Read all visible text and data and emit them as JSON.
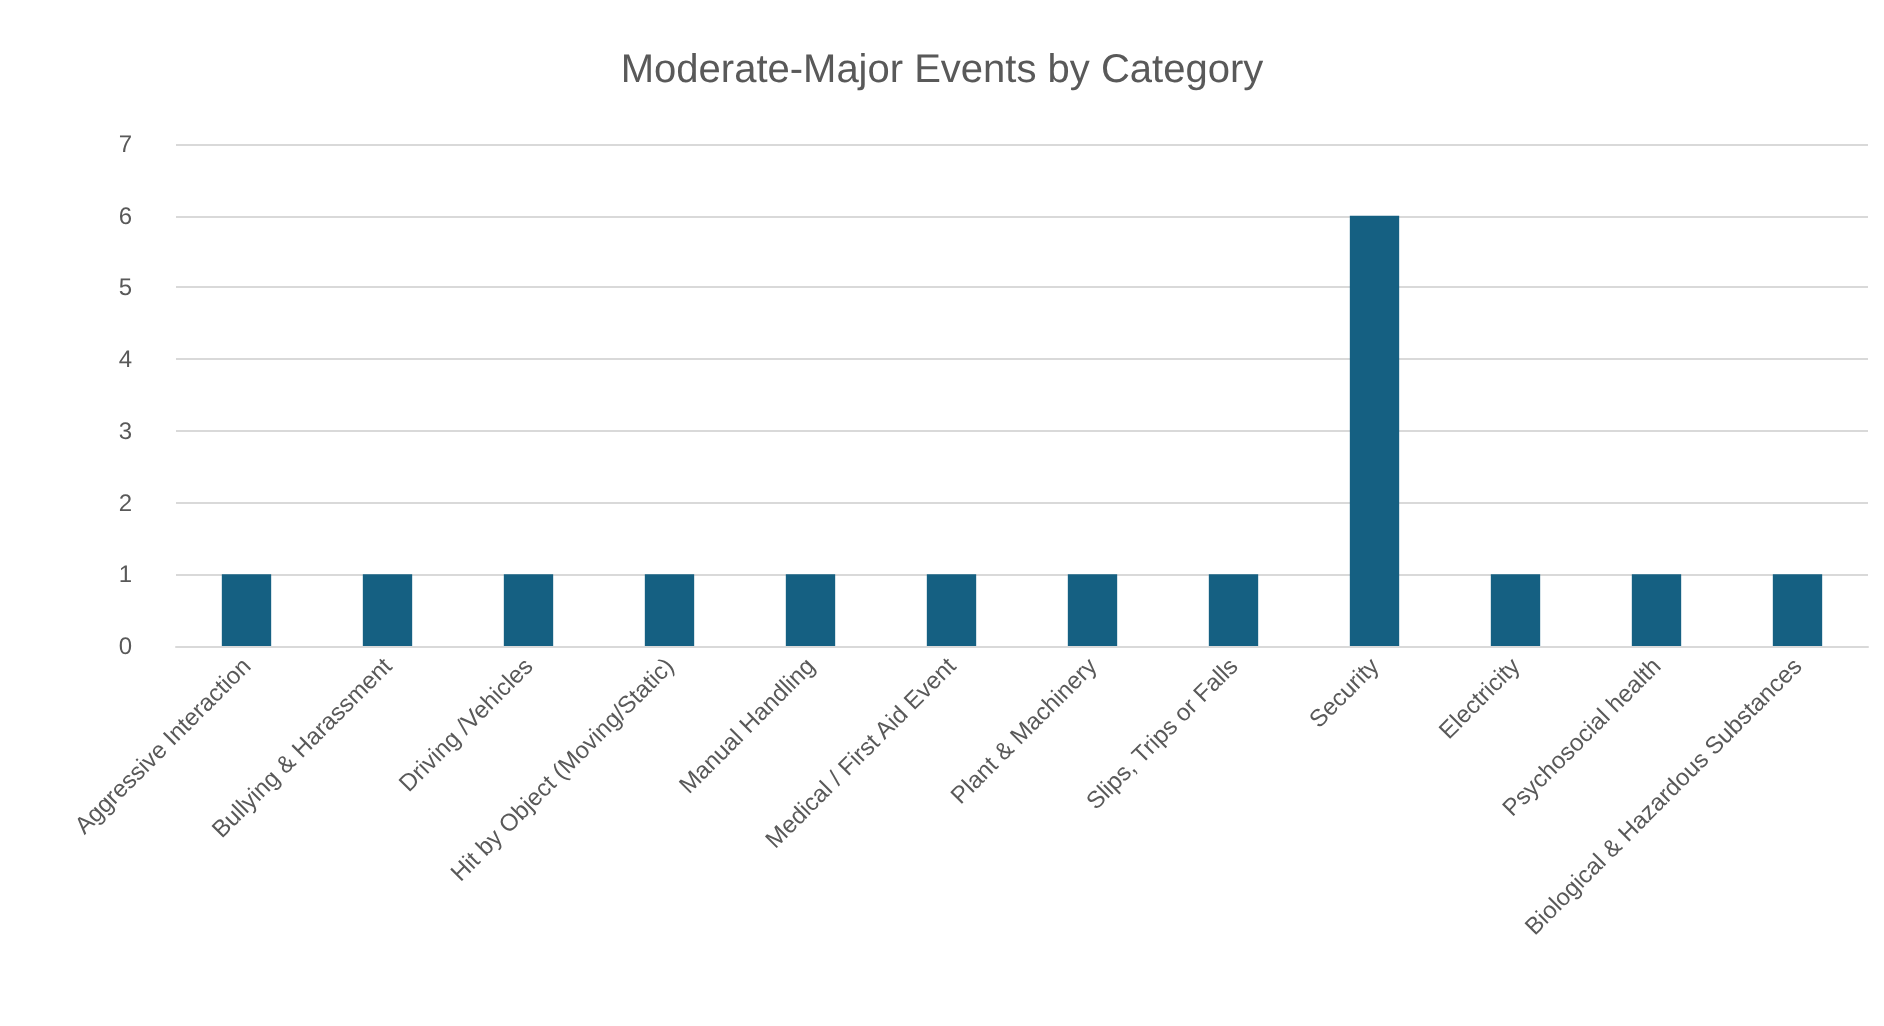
{
  "chart_data": {
    "type": "bar",
    "title": "Moderate-Major Events by Category",
    "categories": [
      "Aggressive Interaction",
      "Bullying & Harassment",
      "Driving /Vehicles",
      "Hit by Object (Moving/Static)",
      "Manual Handling",
      "Medical / First Aid Event",
      "Plant & Machinery",
      "Slips, Trips or Falls",
      "Security",
      "Electricity",
      "Psychosocial health",
      "Biological & Hazardous Substances"
    ],
    "values": [
      1,
      1,
      1,
      1,
      1,
      1,
      1,
      1,
      6,
      1,
      1,
      1
    ],
    "color": "#156082",
    "ylim": [
      0,
      7
    ],
    "yticks": [
      0,
      1,
      2,
      3,
      4,
      5,
      6,
      7
    ],
    "grid": "y"
  }
}
